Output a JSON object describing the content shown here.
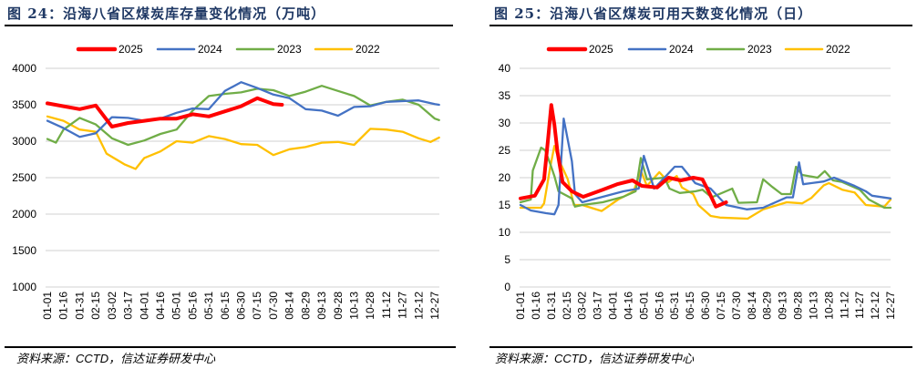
{
  "panels": [
    {
      "title": "图 24：沿海八省区煤炭库存量变化情况（万吨）",
      "source": "资料来源：CCTD，信达证券研发中心"
    },
    {
      "title": "图 25：沿海八省区煤炭可用天数变化情况（日）",
      "source": "资料来源：CCTD，信达证券研发中心"
    }
  ],
  "chart_data": [
    {
      "type": "line",
      "title": "沿海八省区煤炭库存量变化情况（万吨）",
      "ylabel": "万吨",
      "ylim": [
        1000,
        4000
      ],
      "yticks": [
        1000,
        1500,
        2000,
        2500,
        3000,
        3500,
        4000
      ],
      "xticklabels": [
        "01-01",
        "01-16",
        "01-31",
        "02-15",
        "03-02",
        "03-17",
        "04-01",
        "04-16",
        "05-01",
        "05-16",
        "05-31",
        "06-15",
        "06-30",
        "07-15",
        "07-30",
        "08-14",
        "08-29",
        "09-13",
        "09-28",
        "10-13",
        "10-28",
        "11-12",
        "11-27",
        "12-12",
        "12-27"
      ],
      "grid": true,
      "legend": "top-center",
      "series": [
        {
          "name": "2025",
          "color": "#ff0000",
          "bold": true,
          "points": [
            [
              0,
              3520
            ],
            [
              15,
              3480
            ],
            [
              30,
              3440
            ],
            [
              45,
              3490
            ],
            [
              60,
              3200
            ],
            [
              75,
              3250
            ],
            [
              90,
              3280
            ],
            [
              105,
              3310
            ],
            [
              120,
              3310
            ],
            [
              135,
              3370
            ],
            [
              150,
              3340
            ],
            [
              165,
              3410
            ],
            [
              180,
              3480
            ],
            [
              195,
              3590
            ],
            [
              210,
              3510
            ],
            [
              218,
              3500
            ]
          ]
        },
        {
          "name": "2024",
          "color": "#4472c4",
          "points": [
            [
              0,
              3280
            ],
            [
              15,
              3180
            ],
            [
              30,
              3060
            ],
            [
              45,
              3110
            ],
            [
              60,
              3330
            ],
            [
              75,
              3320
            ],
            [
              90,
              3280
            ],
            [
              105,
              3310
            ],
            [
              120,
              3390
            ],
            [
              135,
              3450
            ],
            [
              150,
              3440
            ],
            [
              165,
              3690
            ],
            [
              180,
              3810
            ],
            [
              195,
              3730
            ],
            [
              210,
              3640
            ],
            [
              225,
              3590
            ],
            [
              240,
              3440
            ],
            [
              255,
              3420
            ],
            [
              270,
              3350
            ],
            [
              285,
              3470
            ],
            [
              300,
              3480
            ],
            [
              315,
              3540
            ],
            [
              330,
              3550
            ],
            [
              345,
              3560
            ],
            [
              360,
              3510
            ],
            [
              364,
              3500
            ]
          ]
        },
        {
          "name": "2023",
          "color": "#70ad47",
          "points": [
            [
              0,
              3030
            ],
            [
              8,
              2980
            ],
            [
              15,
              3160
            ],
            [
              30,
              3320
            ],
            [
              45,
              3230
            ],
            [
              60,
              3040
            ],
            [
              75,
              2950
            ],
            [
              90,
              3010
            ],
            [
              105,
              3100
            ],
            [
              120,
              3160
            ],
            [
              135,
              3420
            ],
            [
              150,
              3620
            ],
            [
              165,
              3650
            ],
            [
              180,
              3670
            ],
            [
              195,
              3720
            ],
            [
              210,
              3700
            ],
            [
              225,
              3620
            ],
            [
              240,
              3680
            ],
            [
              255,
              3760
            ],
            [
              270,
              3690
            ],
            [
              285,
              3620
            ],
            [
              300,
              3490
            ],
            [
              315,
              3540
            ],
            [
              330,
              3570
            ],
            [
              345,
              3500
            ],
            [
              360,
              3310
            ],
            [
              364,
              3290
            ]
          ]
        },
        {
          "name": "2022",
          "color": "#ffc000",
          "points": [
            [
              0,
              3340
            ],
            [
              15,
              3280
            ],
            [
              30,
              3160
            ],
            [
              45,
              3130
            ],
            [
              55,
              2830
            ],
            [
              72,
              2680
            ],
            [
              82,
              2620
            ],
            [
              90,
              2770
            ],
            [
              105,
              2860
            ],
            [
              120,
              3000
            ],
            [
              135,
              2980
            ],
            [
              150,
              3070
            ],
            [
              165,
              3030
            ],
            [
              180,
              2960
            ],
            [
              195,
              2950
            ],
            [
              210,
              2810
            ],
            [
              225,
              2890
            ],
            [
              240,
              2920
            ],
            [
              255,
              2980
            ],
            [
              270,
              2990
            ],
            [
              285,
              2950
            ],
            [
              300,
              3170
            ],
            [
              315,
              3160
            ],
            [
              330,
              3130
            ],
            [
              345,
              3040
            ],
            [
              356,
              2990
            ],
            [
              364,
              3050
            ]
          ]
        }
      ]
    },
    {
      "type": "line",
      "title": "沿海八省区煤炭可用天数变化情况（日）",
      "ylabel": "日",
      "ylim": [
        0,
        40
      ],
      "yticks": [
        0,
        5,
        10,
        15,
        20,
        25,
        30,
        35,
        40
      ],
      "xticklabels": [
        "01-01",
        "01-16",
        "01-31",
        "02-15",
        "03-02",
        "03-17",
        "04-01",
        "04-16",
        "05-01",
        "05-16",
        "05-31",
        "06-15",
        "06-30",
        "07-15",
        "07-30",
        "08-14",
        "08-29",
        "09-13",
        "09-28",
        "10-13",
        "10-28",
        "11-12",
        "11-27",
        "12-12",
        "12-27"
      ],
      "grid": true,
      "legend": "top-center",
      "series": [
        {
          "name": "2025",
          "color": "#ff0000",
          "bold": true,
          "points": [
            [
              0,
              16.2
            ],
            [
              14,
              16.7
            ],
            [
              23,
              19.7
            ],
            [
              27,
              27.5
            ],
            [
              30,
              33.3
            ],
            [
              33,
              29.7
            ],
            [
              36,
              24.7
            ],
            [
              41,
              19.2
            ],
            [
              50,
              17.5
            ],
            [
              61,
              16.5
            ],
            [
              80,
              17.8
            ],
            [
              94,
              18.8
            ],
            [
              109,
              19.5
            ],
            [
              118,
              18.5
            ],
            [
              133,
              18.2
            ],
            [
              144,
              20
            ],
            [
              156,
              19.5
            ],
            [
              168,
              20
            ],
            [
              177,
              19.7
            ],
            [
              183,
              17.5
            ],
            [
              190,
              14.7
            ],
            [
              200,
              15.5
            ]
          ]
        },
        {
          "name": "2024",
          "color": "#4472c4",
          "points": [
            [
              0,
              15
            ],
            [
              10,
              14
            ],
            [
              25,
              13.5
            ],
            [
              33,
              13.3
            ],
            [
              37,
              15
            ],
            [
              42,
              30.8
            ],
            [
              50,
              23
            ],
            [
              53,
              17
            ],
            [
              60,
              15.5
            ],
            [
              80,
              16.5
            ],
            [
              100,
              17.5
            ],
            [
              115,
              18
            ],
            [
              120,
              24
            ],
            [
              130,
              18
            ],
            [
              150,
              22
            ],
            [
              157,
              22
            ],
            [
              170,
              19
            ],
            [
              185,
              18
            ],
            [
              200,
              15
            ],
            [
              220,
              14.2
            ],
            [
              236,
              14.5
            ],
            [
              259,
              16.4
            ],
            [
              265,
              16.4
            ],
            [
              271,
              22.8
            ],
            [
              275,
              18.8
            ],
            [
              295,
              19.3
            ],
            [
              305,
              20
            ],
            [
              325,
              18.5
            ],
            [
              336,
              17.5
            ],
            [
              342,
              16.7
            ],
            [
              360,
              16.2
            ]
          ]
        },
        {
          "name": "2023",
          "color": "#70ad47",
          "points": [
            [
              0,
              15.5
            ],
            [
              10,
              16
            ],
            [
              12,
              21.3
            ],
            [
              20,
              25.5
            ],
            [
              24,
              25
            ],
            [
              29,
              22.5
            ],
            [
              33,
              20.3
            ],
            [
              37,
              17.5
            ],
            [
              50,
              16.2
            ],
            [
              53,
              14.7
            ],
            [
              60,
              15
            ],
            [
              80,
              15.5
            ],
            [
              100,
              16.5
            ],
            [
              112,
              17.5
            ],
            [
              117,
              23.6
            ],
            [
              123,
              19.7
            ],
            [
              140,
              20
            ],
            [
              145,
              18
            ],
            [
              155,
              17.2
            ],
            [
              170,
              17.5
            ],
            [
              177,
              17.8
            ],
            [
              186,
              16.4
            ],
            [
              206,
              18
            ],
            [
              212,
              15.4
            ],
            [
              230,
              15.5
            ],
            [
              236,
              19.7
            ],
            [
              245,
              18.3
            ],
            [
              254,
              17
            ],
            [
              263,
              17
            ],
            [
              268,
              22
            ],
            [
              274,
              20.5
            ],
            [
              289,
              20
            ],
            [
              296,
              21.2
            ],
            [
              304,
              19.5
            ],
            [
              313,
              19.2
            ],
            [
              330,
              17.8
            ],
            [
              339,
              16
            ],
            [
              354,
              14.5
            ],
            [
              360,
              14.5
            ]
          ]
        },
        {
          "name": "2022",
          "color": "#ffc000",
          "points": [
            [
              0,
              14.5
            ],
            [
              20,
              14.5
            ],
            [
              23,
              15.3
            ],
            [
              29,
              22
            ],
            [
              33,
              25.8
            ],
            [
              38,
              23
            ],
            [
              46,
              19.7
            ],
            [
              52,
              15
            ],
            [
              60,
              15
            ],
            [
              79,
              13.9
            ],
            [
              95,
              16
            ],
            [
              110,
              17.5
            ],
            [
              117,
              21.3
            ],
            [
              123,
              18.5
            ],
            [
              135,
              21
            ],
            [
              144,
              19.2
            ],
            [
              152,
              20.3
            ],
            [
              157,
              18.2
            ],
            [
              168,
              17
            ],
            [
              173,
              15
            ],
            [
              185,
              13
            ],
            [
              194,
              12.7
            ],
            [
              221,
              12.5
            ],
            [
              236,
              14.2
            ],
            [
              259,
              15.5
            ],
            [
              274,
              15.3
            ],
            [
              283,
              16.3
            ],
            [
              295,
              18.6
            ],
            [
              300,
              19
            ],
            [
              313,
              17.8
            ],
            [
              325,
              17.3
            ],
            [
              336,
              15
            ],
            [
              354,
              14.7
            ],
            [
              360,
              16
            ]
          ]
        }
      ]
    }
  ]
}
